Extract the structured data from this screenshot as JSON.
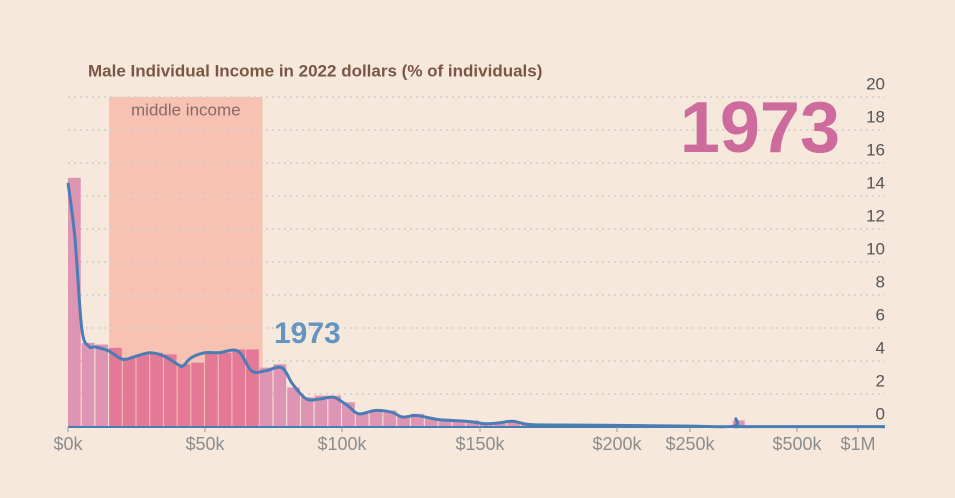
{
  "chart_data": {
    "type": "histogram",
    "title": "Male Individual Income in 2022 dollars (% of individuals)",
    "year": "1973",
    "bins": [
      0,
      5000,
      10000,
      15000,
      20000,
      25000,
      30000,
      35000,
      40000,
      45000,
      50000,
      55000,
      60000,
      65000,
      70000,
      75000,
      80000,
      85000,
      90000,
      95000,
      100000,
      105000,
      110000,
      115000,
      120000,
      125000,
      130000,
      135000,
      140000,
      145000,
      150000,
      155000,
      160000,
      165000,
      170000,
      175000,
      180000,
      185000,
      190000,
      195000,
      200000,
      250000,
      350000,
      380000,
      1000000
    ],
    "values": [
      15.1,
      5.1,
      5.0,
      4.8,
      4.2,
      4.4,
      4.5,
      4.4,
      3.8,
      3.9,
      4.5,
      4.5,
      4.7,
      4.7,
      3.6,
      3.8,
      2.4,
      1.8,
      1.9,
      1.9,
      1.5,
      0.8,
      1.0,
      1.0,
      0.7,
      0.8,
      0.5,
      0.5,
      0.4,
      0.4,
      0.2,
      0.2,
      0.3,
      0.2,
      0.1,
      0.1,
      0.1,
      0.1,
      0.1,
      0.1,
      0.1,
      0.05,
      0.4,
      0.02
    ],
    "color": "#dc8fb0",
    "highlight_color": "#e27595",
    "line": {
      "name": "1973",
      "color": "#4a7db5",
      "x": [
        0,
        2500,
        5000,
        7500,
        10000,
        15000,
        20000,
        25000,
        30000,
        35000,
        40000,
        42000,
        45000,
        50000,
        55000,
        62000,
        67000,
        72000,
        78000,
        82000,
        87000,
        92000,
        97000,
        102000,
        106000,
        112000,
        118000,
        122000,
        127000,
        135000,
        145000,
        152000,
        157000,
        162000,
        168000,
        180000,
        200000,
        250000,
        352000,
        357000,
        362000,
        367000,
        500000,
        1000000,
        1200000
      ],
      "values": [
        14.8,
        11.5,
        6.0,
        4.9,
        4.85,
        4.6,
        4.1,
        4.3,
        4.5,
        4.3,
        3.8,
        3.7,
        4.2,
        4.5,
        4.5,
        4.6,
        3.4,
        3.4,
        3.6,
        2.6,
        1.7,
        1.7,
        1.8,
        1.3,
        0.8,
        1.0,
        0.9,
        0.6,
        0.7,
        0.45,
        0.35,
        0.2,
        0.25,
        0.35,
        0.15,
        0.12,
        0.1,
        0.05,
        0.05,
        0.5,
        0.05,
        0.02,
        0.02,
        0.02,
        0.02
      ]
    },
    "middle_income": {
      "label": "middle income",
      "range": [
        15000,
        71000
      ]
    },
    "xlim": [
      0,
      1200000
    ],
    "xticks": [
      {
        "value": 0,
        "label": "$0k"
      },
      {
        "value": 50000,
        "label": "$50k"
      },
      {
        "value": 100000,
        "label": "$100k"
      },
      {
        "value": 150000,
        "label": "$150k"
      },
      {
        "value": 200000,
        "label": "$200k"
      },
      {
        "value": 250000,
        "label": "$250k"
      },
      {
        "value": 500000,
        "label": "$500k"
      },
      {
        "value": 1000000,
        "label": "$1M"
      }
    ],
    "ylim": [
      0,
      20
    ],
    "yticks": [
      0,
      2,
      4,
      6,
      8,
      10,
      12,
      14,
      16,
      18,
      20
    ],
    "grid": true
  }
}
